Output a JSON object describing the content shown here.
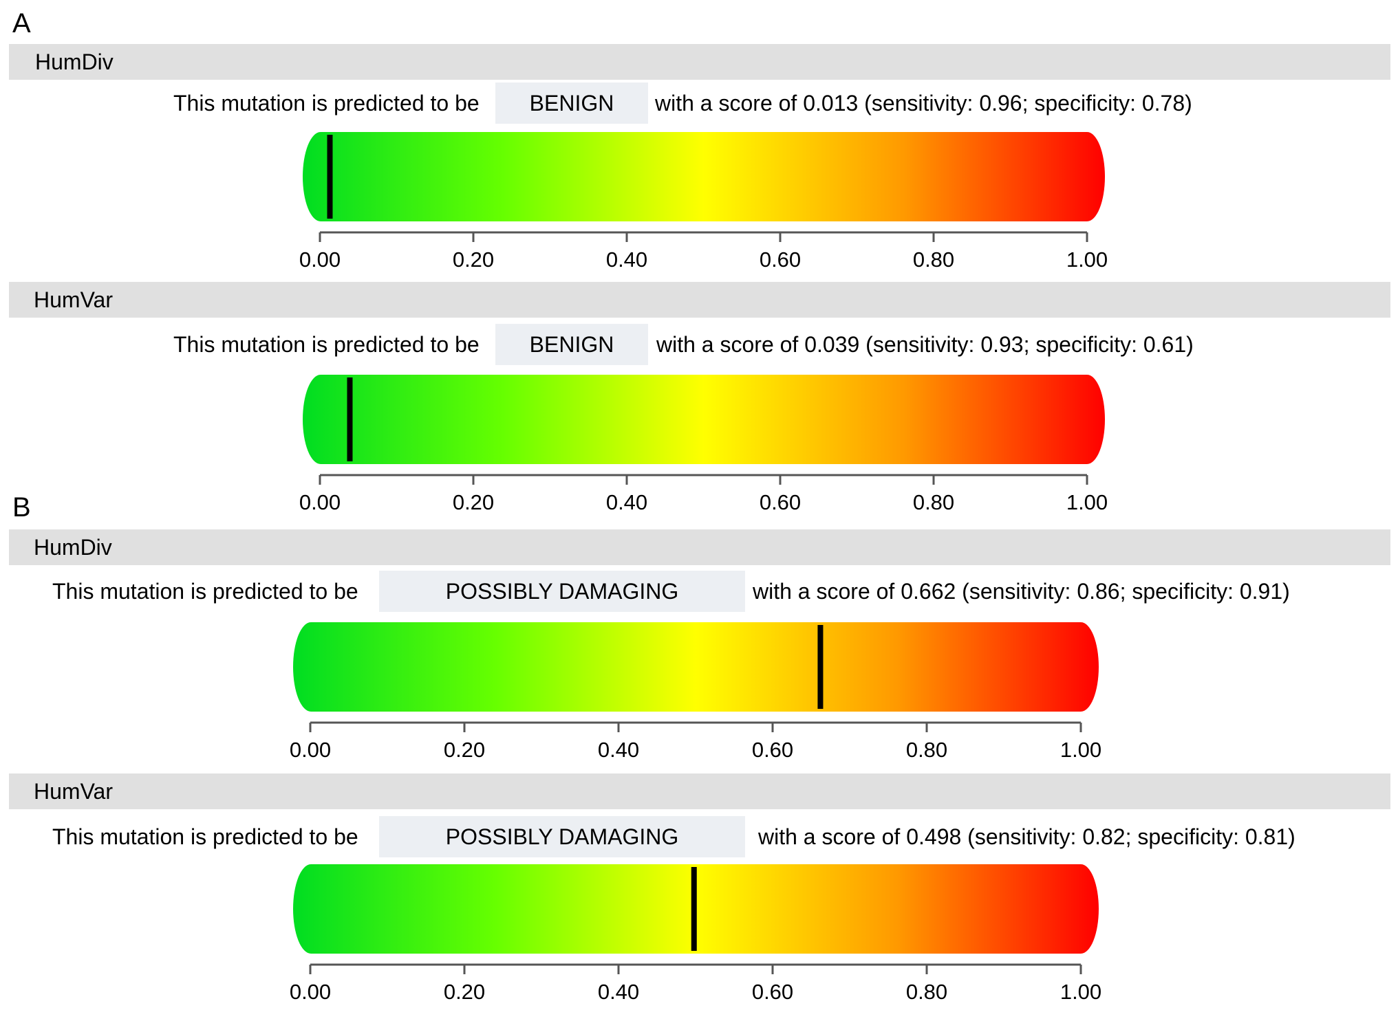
{
  "panels": [
    {
      "letter": "A"
    },
    {
      "letter": "B"
    }
  ],
  "sections": [
    {
      "header": "HumDiv",
      "prefix": "This mutation is predicted to be",
      "prediction": "BENIGN",
      "suffix": "with a score of 0.013 (sensitivity: 0.96; specificity: 0.78)",
      "score": 0.013
    },
    {
      "header": "HumVar",
      "prefix": "This mutation is predicted to be",
      "prediction": "BENIGN",
      "suffix": "with a score of 0.039 (sensitivity: 0.93; specificity: 0.61)",
      "score": 0.039
    },
    {
      "header": "HumDiv",
      "prefix": "This mutation is predicted to be",
      "prediction": "POSSIBLY DAMAGING",
      "suffix": "with a score of 0.662 (sensitivity: 0.86; specificity: 0.91)",
      "score": 0.662
    },
    {
      "header": "HumVar",
      "prefix": "This mutation is predicted to be",
      "prediction": "POSSIBLY DAMAGING",
      "suffix": "with a score of 0.498 (sensitivity: 0.82; specificity: 0.81)",
      "score": 0.498
    }
  ],
  "chart_data": {
    "type": "gauge",
    "xlim": [
      0,
      1
    ],
    "tick_labels": [
      "0.00",
      "0.20",
      "0.40",
      "0.60",
      "0.80",
      "1.00"
    ],
    "tick_values": [
      0,
      0.2,
      0.4,
      0.6,
      0.8,
      1.0
    ],
    "gradient_colors": [
      "#00dd22",
      "#66ff00",
      "#ffff00",
      "#ff9900",
      "#ff0000"
    ],
    "marker_color": "#000000",
    "gauges": [
      {
        "name": "HumDiv",
        "value": 0.013
      },
      {
        "name": "HumVar",
        "value": 0.039
      },
      {
        "name": "HumDiv",
        "value": 0.662
      },
      {
        "name": "HumVar",
        "value": 0.498
      }
    ]
  }
}
